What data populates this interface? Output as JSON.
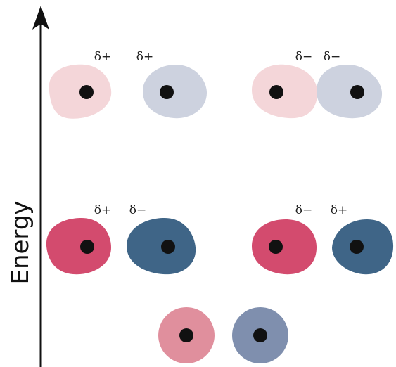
{
  "axis": {
    "label": "Energy"
  },
  "top_row": {
    "left_pair": [
      "δ+",
      "δ+"
    ],
    "right_pair": [
      "δ−",
      "δ−"
    ]
  },
  "middle_row": {
    "left_pair": [
      "δ+",
      "δ−"
    ],
    "right_pair": [
      "δ−",
      "δ+"
    ]
  }
}
